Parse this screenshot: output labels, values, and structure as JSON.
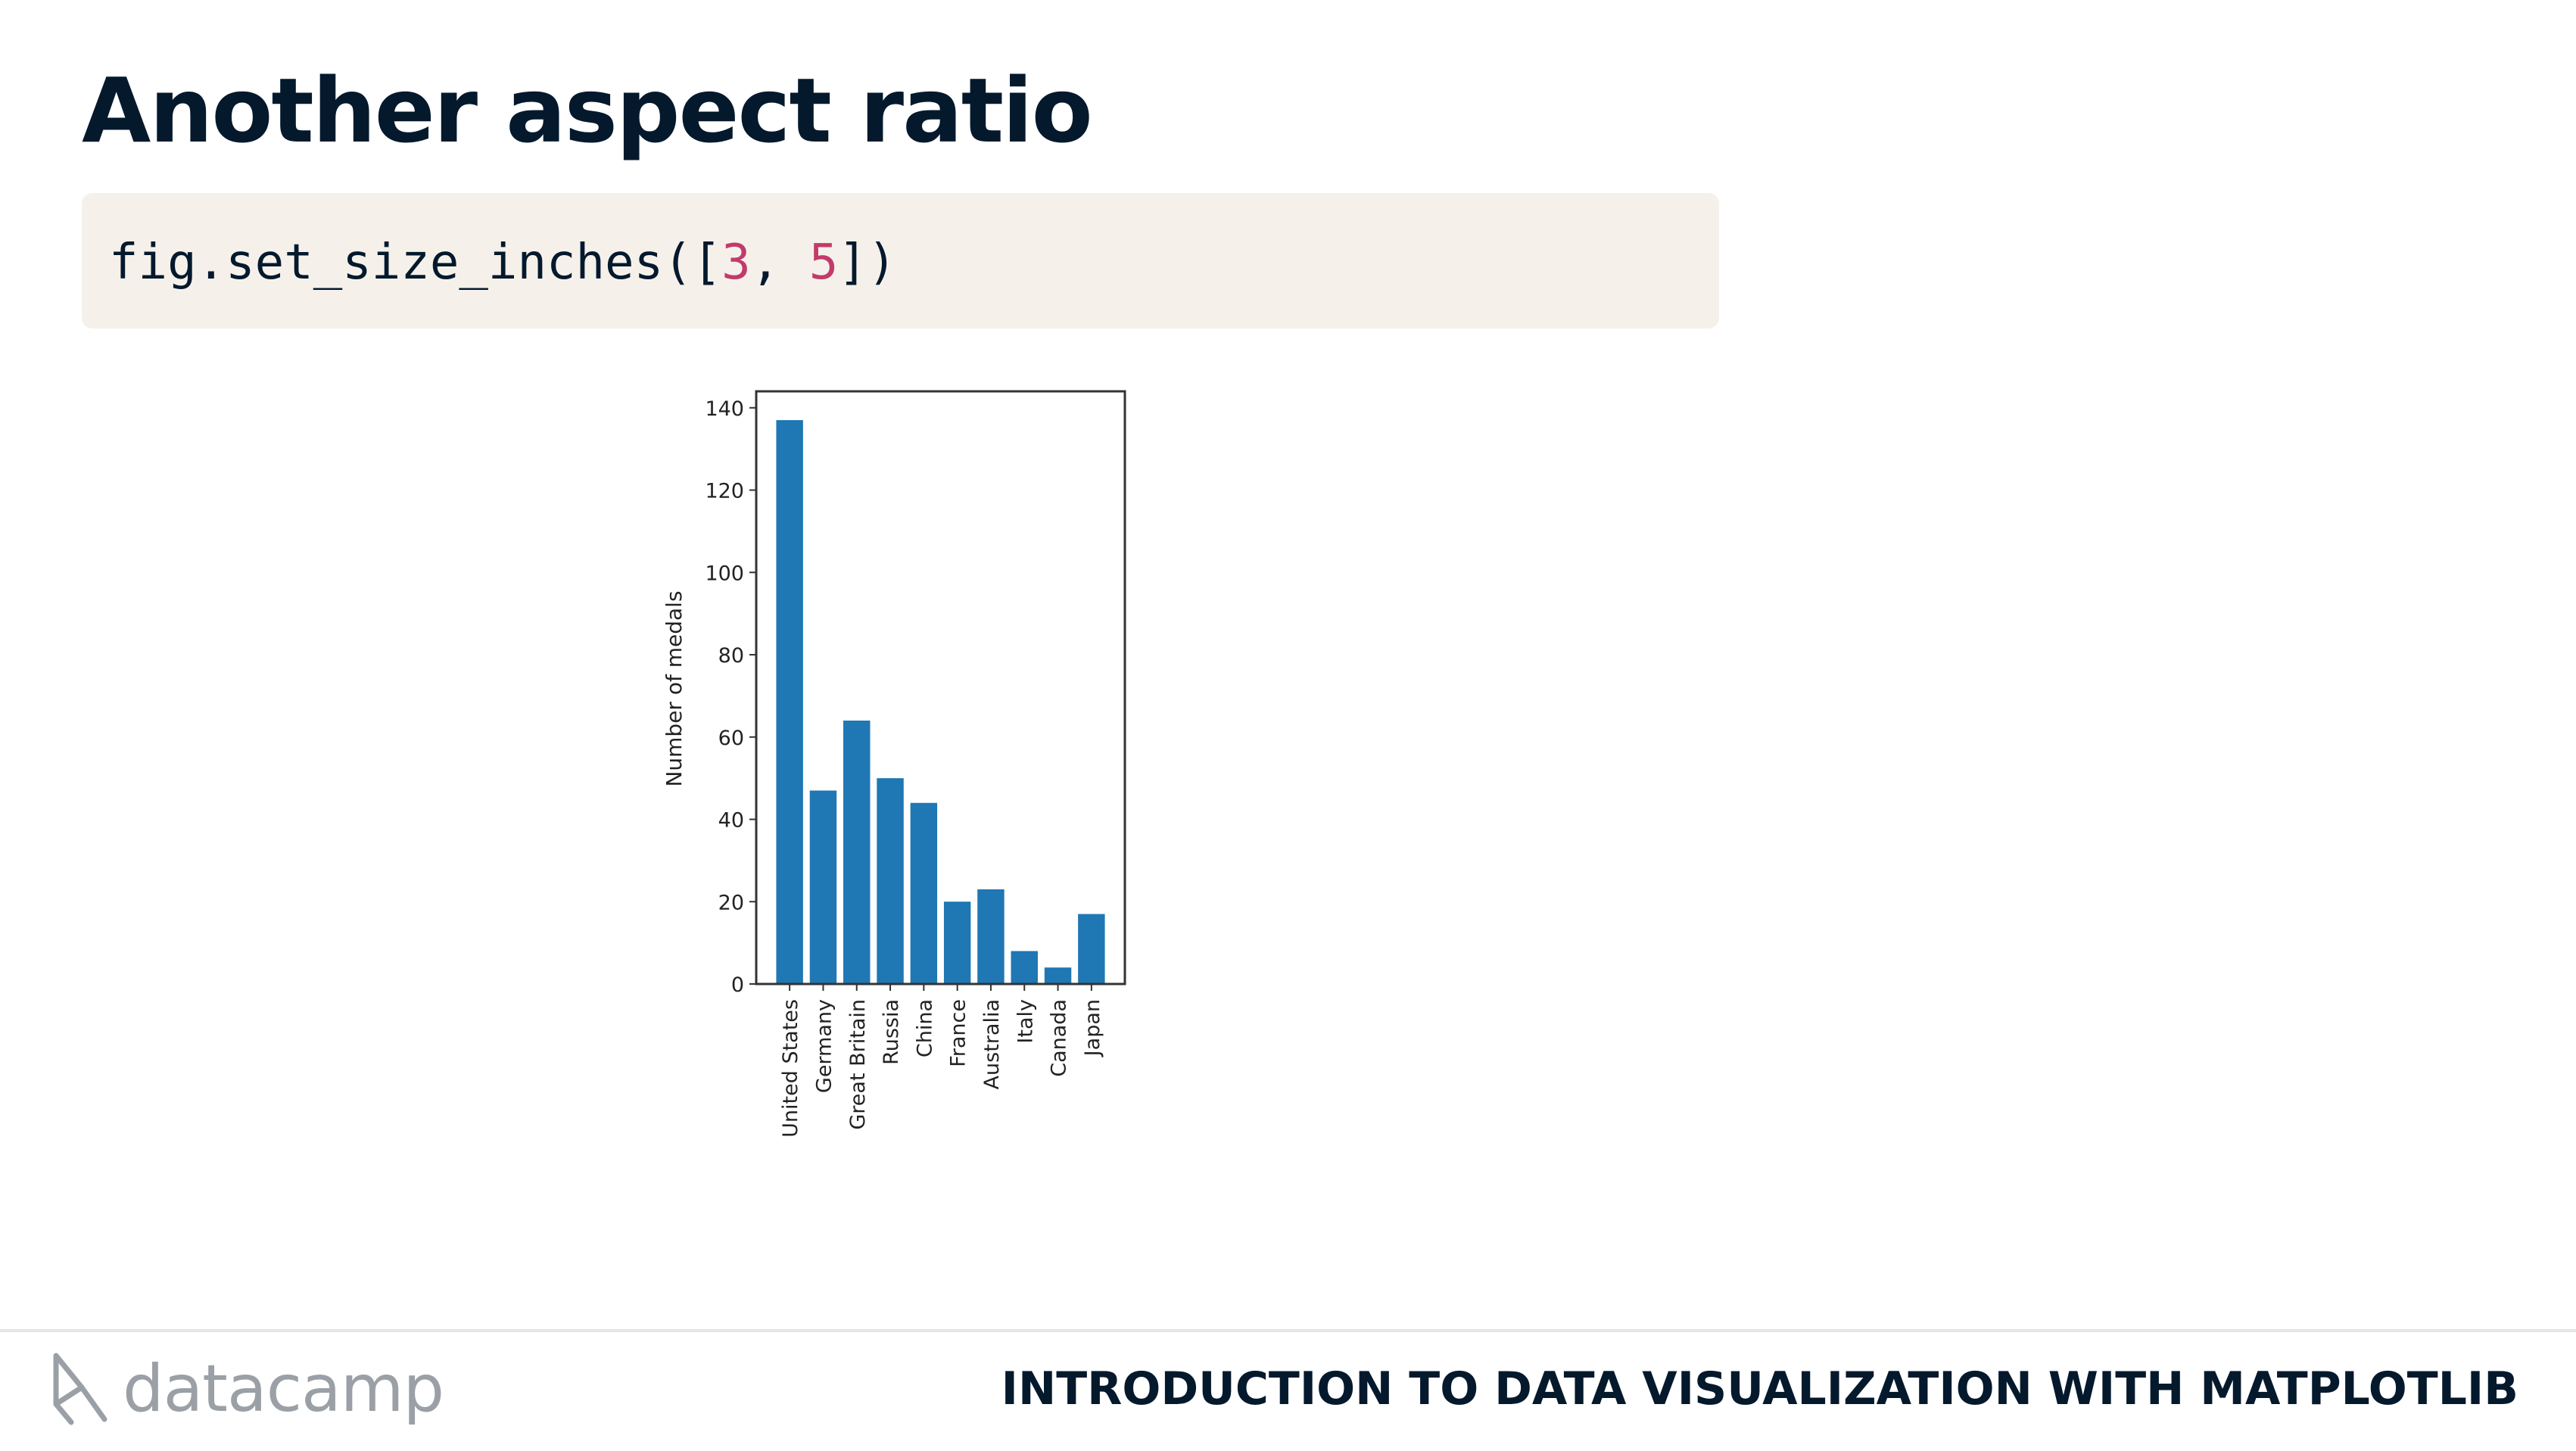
{
  "slide": {
    "title": "Another aspect ratio",
    "code": {
      "prefix": "fig.set_size_inches([",
      "arg1": "3",
      "separator": ", ",
      "arg2": "5",
      "suffix": "])"
    }
  },
  "footer": {
    "brand": "datacamp",
    "course_title": "INTRODUCTION TO DATA VISUALIZATION WITH MATPLOTLIB"
  },
  "colors": {
    "bar": "#1f77b4",
    "code_number": "#c23a6b",
    "title": "#05192d"
  },
  "chart_data": {
    "type": "bar",
    "categories": [
      "United States",
      "Germany",
      "Great Britain",
      "Russia",
      "China",
      "France",
      "Australia",
      "Italy",
      "Canada",
      "Japan"
    ],
    "values": [
      137,
      47,
      64,
      50,
      44,
      20,
      23,
      8,
      4,
      17
    ],
    "ylabel": "Number of medals",
    "xlabel": "",
    "ylim": [
      0,
      144
    ],
    "yticks": [
      0,
      20,
      40,
      60,
      80,
      100,
      120,
      140
    ],
    "grid": false
  }
}
